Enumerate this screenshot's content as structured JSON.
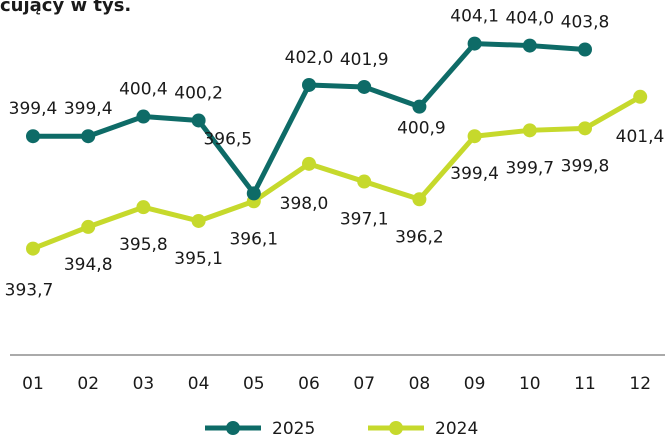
{
  "chart_data": {
    "type": "line",
    "title": "cujący w tys.",
    "categories": [
      "01",
      "02",
      "03",
      "04",
      "05",
      "06",
      "07",
      "08",
      "09",
      "10",
      "11",
      "12"
    ],
    "series": [
      {
        "name": "2025",
        "color": "#0e6b67",
        "values": [
          399.4,
          399.4,
          400.4,
          400.2,
          396.5,
          402.0,
          401.9,
          400.9,
          404.1,
          404.0,
          403.8,
          null
        ],
        "value_labels": [
          "399,4",
          "399,4",
          "400,4",
          "400,2",
          "396,5",
          "402,0",
          "401,9",
          "400,9",
          "404,1",
          "404,0",
          "403,8",
          null
        ]
      },
      {
        "name": "2024",
        "color": "#c6d92c",
        "values": [
          393.7,
          394.8,
          395.8,
          395.1,
          396.1,
          398.0,
          397.1,
          396.2,
          399.4,
          399.7,
          399.8,
          401.4
        ],
        "value_labels": [
          "393,7",
          "394,8",
          "395,8",
          "395,1",
          "396,1",
          "398,0",
          "397,1",
          "396,2",
          "399,4",
          "399,7",
          "399,8",
          "401,4"
        ]
      }
    ],
    "ylim": [
      388.3,
      405.5
    ],
    "legend": "bottom"
  }
}
